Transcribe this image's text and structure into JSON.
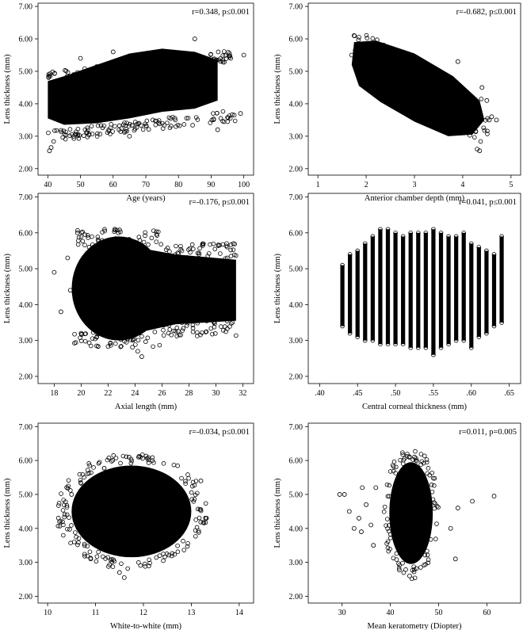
{
  "chart_data": [
    {
      "type": "scatter",
      "xlabel": "Age (years)",
      "ylabel": "Lens thickness (mm)",
      "annotation": "r=0.348, p≤0.001",
      "xlim": [
        37,
        103
      ],
      "ylim": [
        1.8,
        7.1
      ],
      "xticks": [
        40,
        50,
        60,
        70,
        80,
        90,
        100
      ],
      "xtick_labels": [
        "40",
        "50",
        "60",
        "70",
        "80",
        "90",
        "100"
      ],
      "yticks": [
        2,
        3,
        4,
        5,
        6,
        7
      ],
      "ytick_labels": [
        "2.00",
        "3.00",
        "4.00",
        "5.00",
        "6.00",
        "7.00"
      ],
      "shape": "age",
      "outliers": [
        [
          40.5,
          2.55
        ],
        [
          41,
          2.65
        ],
        [
          65,
          3.0
        ],
        [
          99,
          3.7
        ],
        [
          100,
          5.5
        ],
        [
          96,
          5.4
        ],
        [
          92,
          3.2
        ],
        [
          50,
          5.4
        ],
        [
          85,
          6.0
        ],
        [
          60,
          5.6
        ]
      ]
    },
    {
      "type": "scatter",
      "xlabel": "Anterior chamber depth (mm)",
      "ylabel": "Lens thickness (mm)",
      "annotation": "r=-0.682, p≤0.001",
      "xlim": [
        0.8,
        5.2
      ],
      "ylim": [
        1.8,
        7.1
      ],
      "xticks": [
        1,
        2,
        3,
        4,
        5
      ],
      "xtick_labels": [
        "1",
        "2",
        "3",
        "4",
        "5"
      ],
      "yticks": [
        2,
        3,
        4,
        5,
        6,
        7
      ],
      "ytick_labels": [
        "2.00",
        "3.00",
        "4.00",
        "5.00",
        "6.00",
        "7.00"
      ],
      "shape": "acd",
      "outliers": [
        [
          1.75,
          6.1
        ],
        [
          1.85,
          6.05
        ],
        [
          3.9,
          5.3
        ],
        [
          4.4,
          4.5
        ],
        [
          4.5,
          4.1
        ],
        [
          4.6,
          3.6
        ],
        [
          4.7,
          3.5
        ],
        [
          4.3,
          2.6
        ],
        [
          4.35,
          2.55
        ],
        [
          4.55,
          3.5
        ],
        [
          1.7,
          5.5
        ]
      ]
    },
    {
      "type": "scatter",
      "xlabel": "Axial length (mm)",
      "ylabel": "Lens thickness (mm)",
      "annotation": "r=-0.176, p≤0.001",
      "xlim": [
        16.8,
        32.8
      ],
      "ylim": [
        1.8,
        7.1
      ],
      "xticks": [
        18,
        20,
        22,
        24,
        26,
        28,
        30,
        32
      ],
      "xtick_labels": [
        "18",
        "20",
        "22",
        "24",
        "26",
        "28",
        "30",
        "32"
      ],
      "yticks": [
        2,
        3,
        4,
        5,
        6,
        7
      ],
      "ytick_labels": [
        "2.00",
        "3.00",
        "4.00",
        "5.00",
        "6.00",
        "7.00"
      ],
      "shape": "axial",
      "outliers": [
        [
          18.0,
          4.9
        ],
        [
          18.5,
          3.8
        ],
        [
          19.0,
          5.3
        ],
        [
          19.2,
          4.4
        ],
        [
          20.0,
          3.2
        ],
        [
          24.5,
          2.55
        ],
        [
          24.2,
          2.7
        ],
        [
          22.5,
          6.1
        ],
        [
          30.8,
          5.7
        ],
        [
          31.3,
          5.7
        ],
        [
          20.6,
          5.6
        ]
      ]
    },
    {
      "type": "scatter",
      "xlabel": "Central corneal thickness (mm)",
      "ylabel": "Lens thickness (mm)",
      "annotation": "r=0.041, p≤0.001",
      "xlim": [
        0.385,
        0.665
      ],
      "ylim": [
        1.8,
        7.1
      ],
      "xticks": [
        0.4,
        0.45,
        0.5,
        0.55,
        0.6,
        0.65
      ],
      "xtick_labels": [
        ".40",
        ".45",
        ".50",
        ".55",
        ".60",
        ".65"
      ],
      "yticks": [
        2,
        3,
        4,
        5,
        6,
        7
      ],
      "ytick_labels": [
        "2.00",
        "3.00",
        "4.00",
        "5.00",
        "6.00",
        "7.00"
      ],
      "shape": "cct",
      "stripes": [
        [
          0.43,
          3.4,
          5.1
        ],
        [
          0.44,
          3.2,
          5.4
        ],
        [
          0.45,
          3.1,
          5.5
        ],
        [
          0.46,
          3.0,
          5.7
        ],
        [
          0.47,
          3.0,
          5.9
        ],
        [
          0.48,
          2.9,
          6.1
        ],
        [
          0.49,
          2.9,
          6.1
        ],
        [
          0.5,
          2.9,
          6.0
        ],
        [
          0.51,
          2.9,
          5.9
        ],
        [
          0.52,
          2.8,
          6.0
        ],
        [
          0.53,
          2.8,
          6.0
        ],
        [
          0.54,
          2.8,
          6.0
        ],
        [
          0.55,
          2.6,
          6.1
        ],
        [
          0.56,
          2.8,
          6.0
        ],
        [
          0.57,
          2.9,
          5.9
        ],
        [
          0.58,
          3.0,
          5.9
        ],
        [
          0.59,
          3.0,
          6.0
        ],
        [
          0.6,
          2.8,
          5.7
        ],
        [
          0.61,
          3.1,
          5.6
        ],
        [
          0.62,
          3.2,
          5.5
        ],
        [
          0.63,
          3.4,
          5.4
        ],
        [
          0.64,
          3.5,
          5.9
        ]
      ]
    },
    {
      "type": "scatter",
      "xlabel": "White-to-white (mm)",
      "ylabel": "Lens thickness (mm)",
      "annotation": "r=-0.034, p≤0.001",
      "xlim": [
        9.8,
        14.3
      ],
      "ylim": [
        1.8,
        7.1
      ],
      "xticks": [
        10,
        11,
        12,
        13,
        14
      ],
      "xtick_labels": [
        "10",
        "11",
        "12",
        "13",
        "14"
      ],
      "yticks": [
        2,
        3,
        4,
        5,
        6,
        7
      ],
      "ytick_labels": [
        "2.00",
        "3.00",
        "4.00",
        "5.00",
        "6.00",
        "7.00"
      ],
      "shape": "wtw",
      "outliers": [
        [
          11.6,
          2.55
        ],
        [
          11.5,
          2.7
        ],
        [
          11.7,
          6.1
        ],
        [
          11.9,
          6.1
        ],
        [
          10.5,
          5.0
        ],
        [
          13.3,
          4.3
        ],
        [
          13.2,
          5.4
        ],
        [
          10.9,
          3.1
        ]
      ]
    },
    {
      "type": "scatter",
      "xlabel": "Mean keratometry (Diopter)",
      "ylabel": "Lens thickness (mm)",
      "annotation": "r=0.011, p=0.005",
      "xlim": [
        23,
        67
      ],
      "ylim": [
        1.8,
        7.1
      ],
      "xticks": [
        30,
        40,
        50,
        60
      ],
      "xtick_labels": [
        "30",
        "40",
        "50",
        "60"
      ],
      "yticks": [
        2,
        3,
        4,
        5,
        6,
        7
      ],
      "ytick_labels": [
        "2.00",
        "3.00",
        "4.00",
        "5.00",
        "6.00",
        "7.00"
      ],
      "shape": "km",
      "outliers": [
        [
          29.5,
          5.0
        ],
        [
          30.5,
          5.0
        ],
        [
          31.5,
          4.5
        ],
        [
          32.5,
          4.0
        ],
        [
          33.5,
          4.3
        ],
        [
          34.2,
          5.2
        ],
        [
          35.0,
          4.7
        ],
        [
          36.0,
          4.1
        ],
        [
          37.0,
          5.2
        ],
        [
          57.0,
          4.8
        ],
        [
          61.5,
          4.95
        ],
        [
          52.5,
          4.0
        ],
        [
          53.5,
          3.1
        ],
        [
          45.0,
          6.1
        ],
        [
          44.0,
          2.6
        ],
        [
          54.0,
          4.6
        ],
        [
          36.5,
          3.5
        ],
        [
          34.0,
          3.9
        ]
      ]
    }
  ]
}
